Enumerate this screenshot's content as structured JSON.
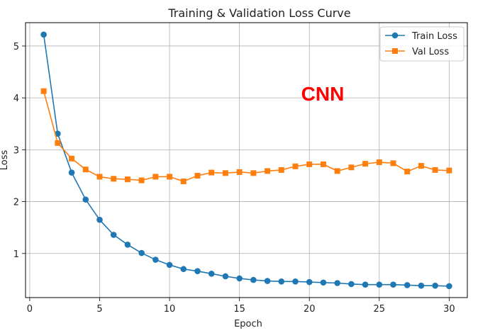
{
  "chart_data": {
    "type": "line",
    "title": "Training & Validation Loss Curve",
    "xlabel": "Epoch",
    "ylabel": "Loss",
    "xlim": [
      -0.3,
      31.3
    ],
    "ylim": [
      0.15,
      5.45
    ],
    "xticks": [
      0,
      5,
      10,
      15,
      20,
      25,
      30
    ],
    "yticks": [
      1,
      2,
      3,
      4,
      5
    ],
    "grid": true,
    "legend_position": "top-right",
    "x": [
      1,
      2,
      3,
      4,
      5,
      6,
      7,
      8,
      9,
      10,
      11,
      12,
      13,
      14,
      15,
      16,
      17,
      18,
      19,
      20,
      21,
      22,
      23,
      24,
      25,
      26,
      27,
      28,
      29,
      30
    ],
    "series": [
      {
        "name": "Train Loss",
        "color": "#1f77b4",
        "marker": "circle",
        "values": [
          5.22,
          3.31,
          2.56,
          2.04,
          1.65,
          1.36,
          1.17,
          1.01,
          0.88,
          0.78,
          0.7,
          0.66,
          0.61,
          0.56,
          0.52,
          0.49,
          0.47,
          0.46,
          0.46,
          0.45,
          0.44,
          0.43,
          0.41,
          0.4,
          0.4,
          0.4,
          0.39,
          0.38,
          0.38,
          0.37
        ]
      },
      {
        "name": "Val Loss",
        "color": "#ff7f0e",
        "marker": "square",
        "values": [
          4.13,
          3.13,
          2.83,
          2.62,
          2.48,
          2.44,
          2.43,
          2.41,
          2.48,
          2.48,
          2.39,
          2.5,
          2.56,
          2.55,
          2.57,
          2.55,
          2.59,
          2.61,
          2.68,
          2.72,
          2.72,
          2.59,
          2.66,
          2.73,
          2.76,
          2.74,
          2.58,
          2.69,
          2.61,
          2.6
        ]
      }
    ],
    "annotation": {
      "text": "CNN",
      "color": "#ff0000"
    }
  }
}
